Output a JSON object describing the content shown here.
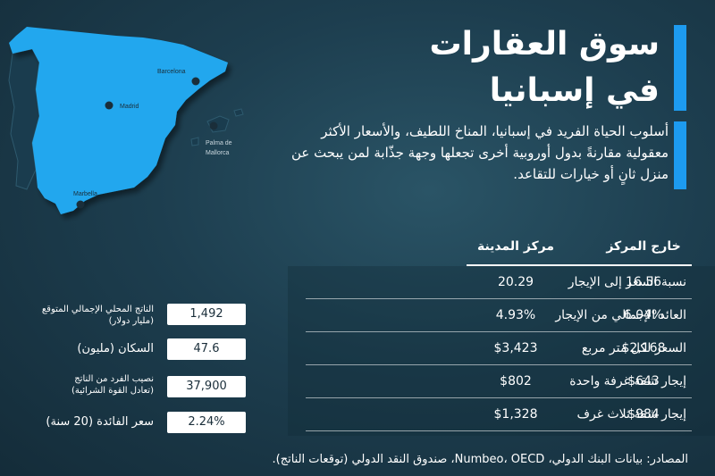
{
  "map": {
    "cities": [
      "Barcelona",
      "Madrid",
      "Palma de",
      "Mallorca",
      "Marbella"
    ]
  },
  "title": {
    "line1": "سوق العقارات",
    "line2": "في إسبانيا"
  },
  "description": "أسلوب الحياة الفريد في إسبانيا، المناخ اللطيف، والأسعار الأكثر معقولية مقارنةً بدول أوروبية أخرى تجعلها وجهة جذّابة لمن يبحث عن منزل ثانٍ أو خيارات للتقاعد.",
  "table": {
    "headers": [
      "خارج المركز",
      "مركز المدينة"
    ],
    "rows": [
      {
        "label": "نسبة السعر إلى الإيجار",
        "outside": "16.56",
        "center": "20.29"
      },
      {
        "label": "العائد الإجمالي من الإيجار",
        "outside": "6.04%",
        "center": "4.93%"
      },
      {
        "label": "السعر لكل متر مربع",
        "outside": "$2,168",
        "center": "$3,423"
      },
      {
        "label": "إيجار شقة غرفة واحدة",
        "outside": "$643",
        "center": "$802"
      },
      {
        "label": "إيجار شقة ثلاث غرف",
        "outside": "$984",
        "center": "$1,328"
      }
    ]
  },
  "stats": [
    {
      "label": "الناتج المحلي الإجمالي المتوقع",
      "sublabel": "(مليار دولار)",
      "value": "1,492"
    },
    {
      "label": "السكان (مليون)",
      "sublabel": "",
      "value": "47.6"
    },
    {
      "label": "نصيب الفرد من الناتج",
      "sublabel": "(تعادل القوة الشرائية)",
      "value": "37,900"
    },
    {
      "label": "سعر الفائدة (20 سنة)",
      "sublabel": "",
      "value": "2.24%"
    }
  ],
  "source": "المصادر: بيانات البنك الدولي، Numbeo، OECD، صندوق النقد الدولي (توقعات الناتج).",
  "colors": {
    "accent": "#1d9bf0",
    "map_fill": "#22a7ee"
  }
}
